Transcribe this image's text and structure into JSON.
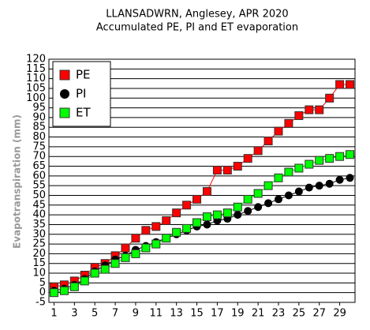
{
  "chart_data": {
    "type": "line",
    "title": "LLANSADWRN, Anglesey, APR 2020",
    "subtitle": "Accumulated PE, PI and ET evaporation",
    "y_label": "Evapotranspiration (mm)",
    "x": [
      1,
      2,
      3,
      4,
      5,
      6,
      7,
      8,
      9,
      10,
      11,
      12,
      13,
      14,
      15,
      16,
      17,
      18,
      19,
      20,
      21,
      22,
      23,
      24,
      25,
      26,
      27,
      28,
      29,
      30
    ],
    "xlim": [
      0.5,
      30.5
    ],
    "xticks": [
      1,
      3,
      5,
      7,
      9,
      11,
      13,
      15,
      17,
      19,
      21,
      23,
      25,
      27,
      29
    ],
    "ylim": [
      -5,
      120
    ],
    "yticks": [
      -5,
      0,
      5,
      10,
      15,
      20,
      25,
      30,
      35,
      40,
      45,
      50,
      55,
      60,
      65,
      70,
      75,
      80,
      85,
      90,
      95,
      100,
      105,
      110,
      115,
      120
    ],
    "grid": true,
    "legend": "top-left",
    "series": [
      {
        "name": "PE",
        "color": "#ff0000",
        "marker": "square",
        "values": [
          3,
          4,
          6,
          9,
          13,
          15,
          19,
          23,
          28,
          32,
          34,
          37,
          41,
          45,
          48,
          52,
          63,
          63,
          65,
          69,
          73,
          78,
          83,
          87,
          91,
          94,
          94,
          100,
          107,
          107
        ]
      },
      {
        "name": "PI",
        "color": "#000000",
        "marker": "circle",
        "values": [
          1,
          2,
          4,
          7,
          11,
          14,
          17,
          19,
          22,
          24,
          26,
          28,
          30,
          32,
          34,
          35,
          37,
          38,
          40,
          42,
          44,
          46,
          48,
          50,
          52,
          54,
          55,
          56,
          58,
          59
        ]
      },
      {
        "name": "ET",
        "color": "#00ff00",
        "marker": "square",
        "values": [
          0,
          1,
          3,
          6,
          10,
          12,
          15,
          18,
          20,
          23,
          25,
          28,
          31,
          33,
          36,
          39,
          40,
          41,
          44,
          48,
          51,
          55,
          59,
          62,
          64,
          66,
          68,
          69,
          70,
          71
        ]
      }
    ]
  }
}
